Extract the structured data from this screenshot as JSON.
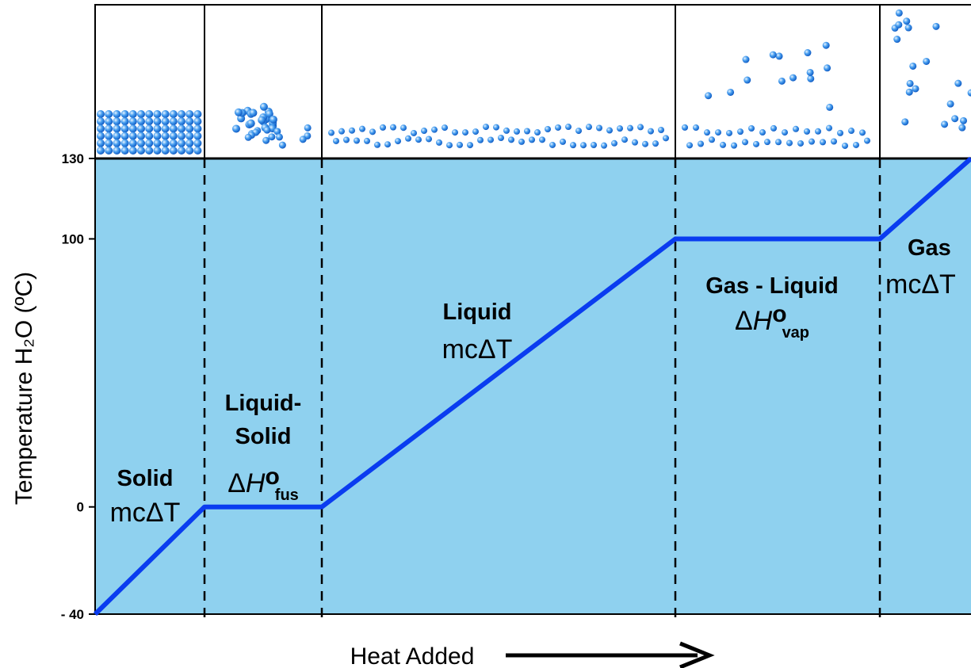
{
  "chart_data": {
    "type": "line",
    "y_label": "Temperature H₂O (ºC)",
    "x_label": "Heat Added",
    "x": [
      0,
      138,
      286,
      732,
      990,
      1105
    ],
    "values": [
      -40,
      0,
      0,
      100,
      100,
      130
    ],
    "color": "#0a3cf0",
    "xlim": [
      0,
      1105
    ],
    "ylim": [
      -40,
      130
    ],
    "yticks": [
      {
        "value": -40,
        "label": "- 40"
      },
      0,
      100,
      130
    ],
    "annotations": [
      {
        "lines": [
          "Solid"
        ],
        "formula": "mcΔT"
      },
      {
        "lines": [
          "Liquid-",
          "Solid"
        ],
        "formula": {
          "delta": "Δ",
          "var": "H",
          "sup": "o",
          "sub": "fus"
        }
      },
      {
        "lines": [
          "Liquid"
        ],
        "formula": "mcΔT"
      },
      {
        "lines": [
          "Gas - Liquid"
        ],
        "formula": {
          "delta": "Δ",
          "var": "H",
          "sup": "o",
          "sub": "vap"
        }
      },
      {
        "lines": [
          "Gas"
        ],
        "formula": "mcΔT"
      }
    ]
  }
}
